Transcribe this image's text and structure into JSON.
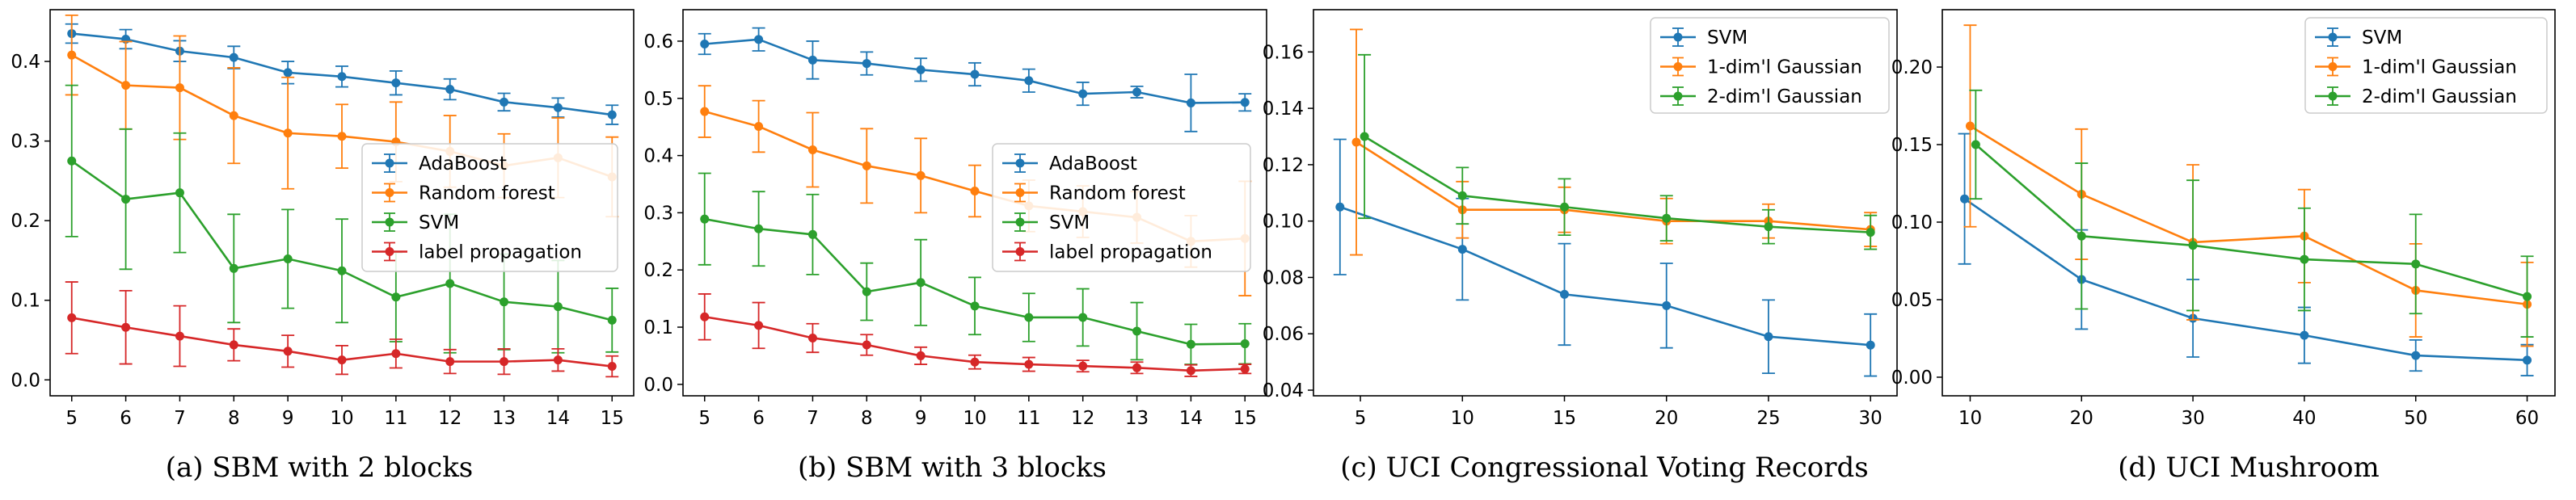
{
  "chart_data": [
    {
      "type": "line",
      "caption": "(a) SBM with 2 blocks",
      "x": [
        5,
        6,
        7,
        8,
        9,
        10,
        11,
        12,
        13,
        14,
        15
      ],
      "xticks": [
        5,
        6,
        7,
        8,
        9,
        10,
        11,
        12,
        13,
        14,
        15
      ],
      "xlim": [
        4.6,
        15.4
      ],
      "yticks": [
        0.0,
        0.1,
        0.2,
        0.3,
        0.4
      ],
      "ytick_labels": [
        "0.0",
        "0.1",
        "0.2",
        "0.3",
        "0.4"
      ],
      "ylim": [
        -0.02,
        0.465
      ],
      "legend": "center-right",
      "series": [
        {
          "name": "AdaBoost",
          "color": "#1f77b4",
          "values": [
            0.435,
            0.428,
            0.413,
            0.405,
            0.386,
            0.381,
            0.373,
            0.365,
            0.349,
            0.342,
            0.333
          ],
          "errors": [
            0.012,
            0.012,
            0.013,
            0.014,
            0.014,
            0.013,
            0.015,
            0.013,
            0.011,
            0.012,
            0.012
          ]
        },
        {
          "name": "Random forest",
          "color": "#ff7f0e",
          "values": [
            0.408,
            0.37,
            0.367,
            0.332,
            0.31,
            0.306,
            0.299,
            0.287,
            0.269,
            0.279,
            0.255
          ],
          "errors": [
            0.05,
            0.055,
            0.065,
            0.06,
            0.07,
            0.04,
            0.05,
            0.045,
            0.04,
            0.05,
            0.05
          ]
        },
        {
          "name": "SVM",
          "color": "#2ca02c",
          "values": [
            0.275,
            0.227,
            0.235,
            0.14,
            0.152,
            0.137,
            0.104,
            0.121,
            0.098,
            0.092,
            0.075
          ],
          "errors": [
            0.095,
            0.088,
            0.075,
            0.068,
            0.062,
            0.065,
            0.056,
            0.087,
            0.06,
            0.058,
            0.04
          ]
        },
        {
          "name": "label propagation",
          "color": "#d62728",
          "values": [
            0.078,
            0.066,
            0.055,
            0.044,
            0.036,
            0.025,
            0.033,
            0.023,
            0.023,
            0.025,
            0.017
          ],
          "errors": [
            0.045,
            0.046,
            0.038,
            0.02,
            0.02,
            0.018,
            0.018,
            0.015,
            0.016,
            0.014,
            0.013
          ]
        }
      ]
    },
    {
      "type": "line",
      "caption": "(b) SBM with 3 blocks",
      "x": [
        5,
        6,
        7,
        8,
        9,
        10,
        11,
        12,
        13,
        14,
        15
      ],
      "xticks": [
        5,
        6,
        7,
        8,
        9,
        10,
        11,
        12,
        13,
        14,
        15
      ],
      "xlim": [
        4.6,
        15.4
      ],
      "yticks": [
        0.0,
        0.1,
        0.2,
        0.3,
        0.4,
        0.5,
        0.6
      ],
      "ytick_labels": [
        "0.0",
        "0.1",
        "0.2",
        "0.3",
        "0.4",
        "0.5",
        "0.6"
      ],
      "ylim": [
        -0.02,
        0.655
      ],
      "legend": "center-right",
      "series": [
        {
          "name": "AdaBoost",
          "color": "#1f77b4",
          "values": [
            0.595,
            0.603,
            0.567,
            0.561,
            0.55,
            0.542,
            0.531,
            0.508,
            0.511,
            0.492,
            0.493
          ],
          "errors": [
            0.018,
            0.02,
            0.033,
            0.02,
            0.02,
            0.02,
            0.02,
            0.02,
            0.01,
            0.05,
            0.015
          ]
        },
        {
          "name": "Random forest",
          "color": "#ff7f0e",
          "values": [
            0.477,
            0.451,
            0.41,
            0.382,
            0.365,
            0.338,
            0.312,
            0.302,
            0.292,
            0.25,
            0.255
          ],
          "errors": [
            0.045,
            0.045,
            0.065,
            0.065,
            0.065,
            0.045,
            0.045,
            0.045,
            0.045,
            0.045,
            0.1
          ]
        },
        {
          "name": "SVM",
          "color": "#2ca02c",
          "values": [
            0.289,
            0.272,
            0.262,
            0.162,
            0.178,
            0.137,
            0.117,
            0.117,
            0.093,
            0.07,
            0.071
          ],
          "errors": [
            0.08,
            0.065,
            0.07,
            0.05,
            0.075,
            0.05,
            0.042,
            0.05,
            0.05,
            0.035,
            0.035
          ]
        },
        {
          "name": "label propagation",
          "color": "#d62728",
          "values": [
            0.118,
            0.103,
            0.081,
            0.069,
            0.05,
            0.039,
            0.035,
            0.032,
            0.029,
            0.024,
            0.027
          ],
          "errors": [
            0.04,
            0.04,
            0.025,
            0.018,
            0.015,
            0.012,
            0.012,
            0.01,
            0.01,
            0.01,
            0.008
          ]
        }
      ]
    },
    {
      "type": "line",
      "caption": "(c) UCI Congressional Voting Records",
      "x": [
        4,
        5,
        10,
        15,
        20,
        25,
        30
      ],
      "xticks": [
        5,
        10,
        15,
        20,
        25,
        30
      ],
      "xlim": [
        2.7,
        31.3
      ],
      "yticks": [
        0.04,
        0.06,
        0.08,
        0.1,
        0.12,
        0.14,
        0.16
      ],
      "ytick_labels": [
        "0.04",
        "0.06",
        "0.08",
        "0.10",
        "0.12",
        "0.14",
        "0.16"
      ],
      "ylim": [
        0.038,
        0.175
      ],
      "legend": "top-right",
      "series": [
        {
          "name": "SVM",
          "color": "#1f77b4",
          "x": [
            4,
            10,
            15,
            20,
            25,
            30
          ],
          "values": [
            0.105,
            0.09,
            0.074,
            0.07,
            0.059,
            0.056
          ],
          "errors": [
            0.024,
            0.018,
            0.018,
            0.015,
            0.013,
            0.011
          ]
        },
        {
          "name": "1-dim'l Gaussian",
          "color": "#ff7f0e",
          "x": [
            4.8,
            10,
            15,
            20,
            25,
            30
          ],
          "values": [
            0.128,
            0.104,
            0.104,
            0.1,
            0.1,
            0.097
          ],
          "errors": [
            0.04,
            0.01,
            0.008,
            0.008,
            0.006,
            0.006
          ]
        },
        {
          "name": "2-dim'l Gaussian",
          "color": "#2ca02c",
          "x": [
            5.2,
            10,
            15,
            20,
            25,
            30
          ],
          "values": [
            0.13,
            0.109,
            0.105,
            0.101,
            0.098,
            0.096
          ],
          "errors": [
            0.029,
            0.01,
            0.01,
            0.008,
            0.006,
            0.006
          ]
        }
      ]
    },
    {
      "type": "line",
      "caption": "(d) UCI Mushroom",
      "x": [
        10,
        20,
        30,
        40,
        50,
        60
      ],
      "xticks": [
        10,
        20,
        30,
        40,
        50,
        60
      ],
      "xlim": [
        7.5,
        62.5
      ],
      "yticks": [
        0.0,
        0.05,
        0.1,
        0.15,
        0.2
      ],
      "ytick_labels": [
        "0.00",
        "0.05",
        "0.10",
        "0.15",
        "0.20"
      ],
      "ylim": [
        -0.012,
        0.237
      ],
      "legend": "top-right",
      "series": [
        {
          "name": "SVM",
          "color": "#1f77b4",
          "x": [
            9.5,
            20,
            30,
            40,
            50,
            60
          ],
          "values": [
            0.115,
            0.063,
            0.038,
            0.027,
            0.014,
            0.011
          ],
          "errors": [
            0.042,
            0.032,
            0.025,
            0.018,
            0.01,
            0.01
          ]
        },
        {
          "name": "1-dim'l Gaussian",
          "color": "#ff7f0e",
          "x": [
            10,
            20,
            30,
            40,
            50,
            60
          ],
          "values": [
            0.162,
            0.118,
            0.087,
            0.091,
            0.056,
            0.047
          ],
          "errors": [
            0.065,
            0.042,
            0.05,
            0.03,
            0.03,
            0.027
          ]
        },
        {
          "name": "2-dim'l Gaussian",
          "color": "#2ca02c",
          "x": [
            10.5,
            20,
            30,
            40,
            50,
            60
          ],
          "values": [
            0.15,
            0.091,
            0.085,
            0.076,
            0.073,
            0.052
          ],
          "errors": [
            0.035,
            0.047,
            0.042,
            0.033,
            0.032,
            0.026
          ]
        }
      ]
    }
  ]
}
